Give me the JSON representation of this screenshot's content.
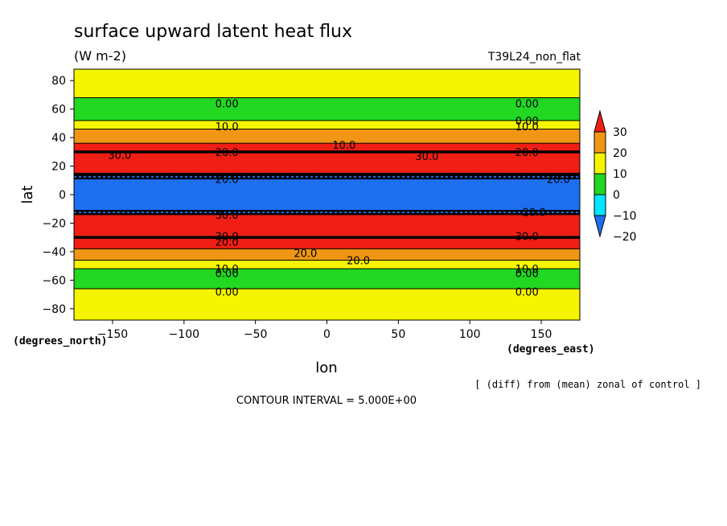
{
  "chart_data": {
    "type": "heatmap",
    "title": "surface upward latent heat flux",
    "units": "(W m-2)",
    "run_label": "T39L24_non_flat",
    "xlabel": "lon",
    "ylabel": "lat",
    "x_units_label": "(degrees_east)",
    "y_units_label": "(degrees_north)",
    "xlim": [
      -177,
      177
    ],
    "ylim": [
      -88,
      88
    ],
    "x_ticks": [
      -150,
      -100,
      -50,
      0,
      50,
      100,
      150
    ],
    "y_ticks": [
      80,
      60,
      40,
      20,
      0,
      -20,
      -40,
      -60,
      -80
    ],
    "x_tick_labels": [
      "−150",
      "−100",
      "−50",
      "0",
      "50",
      "100",
      "150"
    ],
    "y_tick_labels": [
      "80",
      "60",
      "40",
      "20",
      "0",
      "−20",
      "−40",
      "−60",
      "−80"
    ],
    "colorbar": {
      "levels": [
        -20,
        -10,
        0,
        10,
        20,
        30
      ],
      "labels": [
        "30",
        "20",
        "10",
        "0",
        "−10",
        "−20"
      ],
      "colors": [
        "#1e6ef0",
        "#00e6ff",
        "#22d822",
        "#f5f500",
        "#f09614",
        "#f01e14"
      ],
      "extend": "both"
    },
    "zonal_bands": [
      {
        "lat_from": -88,
        "lat_to": -66,
        "value": 5
      },
      {
        "lat_from": -66,
        "lat_to": -52,
        "value": -5
      },
      {
        "lat_from": -52,
        "lat_to": -46,
        "value": 5
      },
      {
        "lat_from": -46,
        "lat_to": -38,
        "value": 15
      },
      {
        "lat_from": -38,
        "lat_to": -30,
        "value": 25
      },
      {
        "lat_from": -30,
        "lat_to": -14,
        "value": 35
      },
      {
        "lat_from": -14,
        "lat_to": -11,
        "value": 35
      },
      {
        "lat_from": -11,
        "lat_to": 11,
        "value": -25
      },
      {
        "lat_from": 11,
        "lat_to": 15,
        "value": 35
      },
      {
        "lat_from": 15,
        "lat_to": 30,
        "value": 35
      },
      {
        "lat_from": 30,
        "lat_to": 36,
        "value": 25
      },
      {
        "lat_from": 36,
        "lat_to": 46,
        "value": 15
      },
      {
        "lat_from": 46,
        "lat_to": 52,
        "value": 5
      },
      {
        "lat_from": 52,
        "lat_to": 68,
        "value": -5
      },
      {
        "lat_from": 68,
        "lat_to": 88,
        "value": 5
      }
    ],
    "contour_labels": [
      {
        "text": "0.00",
        "lon": -70,
        "lat": 64
      },
      {
        "text": "0.00",
        "lon": 140,
        "lat": 64
      },
      {
        "text": "0.00",
        "lon": 140,
        "lat": 52
      },
      {
        "text": "10.0",
        "lon": -70,
        "lat": 48
      },
      {
        "text": "10.0",
        "lon": 140,
        "lat": 48
      },
      {
        "text": "10.0",
        "lon": 12,
        "lat": 35
      },
      {
        "text": "30.0",
        "lon": -145,
        "lat": 28
      },
      {
        "text": "20.0",
        "lon": -70,
        "lat": 30
      },
      {
        "text": "30.0",
        "lon": 70,
        "lat": 27
      },
      {
        "text": "20.0",
        "lon": 140,
        "lat": 30
      },
      {
        "text": "20.0",
        "lon": -70,
        "lat": 11
      },
      {
        "text": "20.0",
        "lon": 162,
        "lat": 11
      },
      {
        "text": "30.0",
        "lon": -70,
        "lat": -14
      },
      {
        "text": "20.0",
        "lon": 145,
        "lat": -12
      },
      {
        "text": "30.0",
        "lon": -70,
        "lat": -29
      },
      {
        "text": "30.0",
        "lon": 140,
        "lat": -29
      },
      {
        "text": "20.0",
        "lon": -70,
        "lat": -33
      },
      {
        "text": "20.0",
        "lon": -15,
        "lat": -41
      },
      {
        "text": "20.0",
        "lon": 22,
        "lat": -46
      },
      {
        "text": "10.0",
        "lon": -70,
        "lat": -52
      },
      {
        "text": "10.0",
        "lon": 140,
        "lat": -52
      },
      {
        "text": "0.00",
        "lon": -70,
        "lat": -55
      },
      {
        "text": "0.00",
        "lon": 140,
        "lat": -55
      },
      {
        "text": "0.00",
        "lon": -70,
        "lat": -68
      },
      {
        "text": "0.00",
        "lon": 140,
        "lat": -68
      }
    ]
  },
  "footnote": "[ (diff) from (mean) zonal of control ]",
  "contour_interval": "CONTOUR INTERVAL = 5.000E+00"
}
